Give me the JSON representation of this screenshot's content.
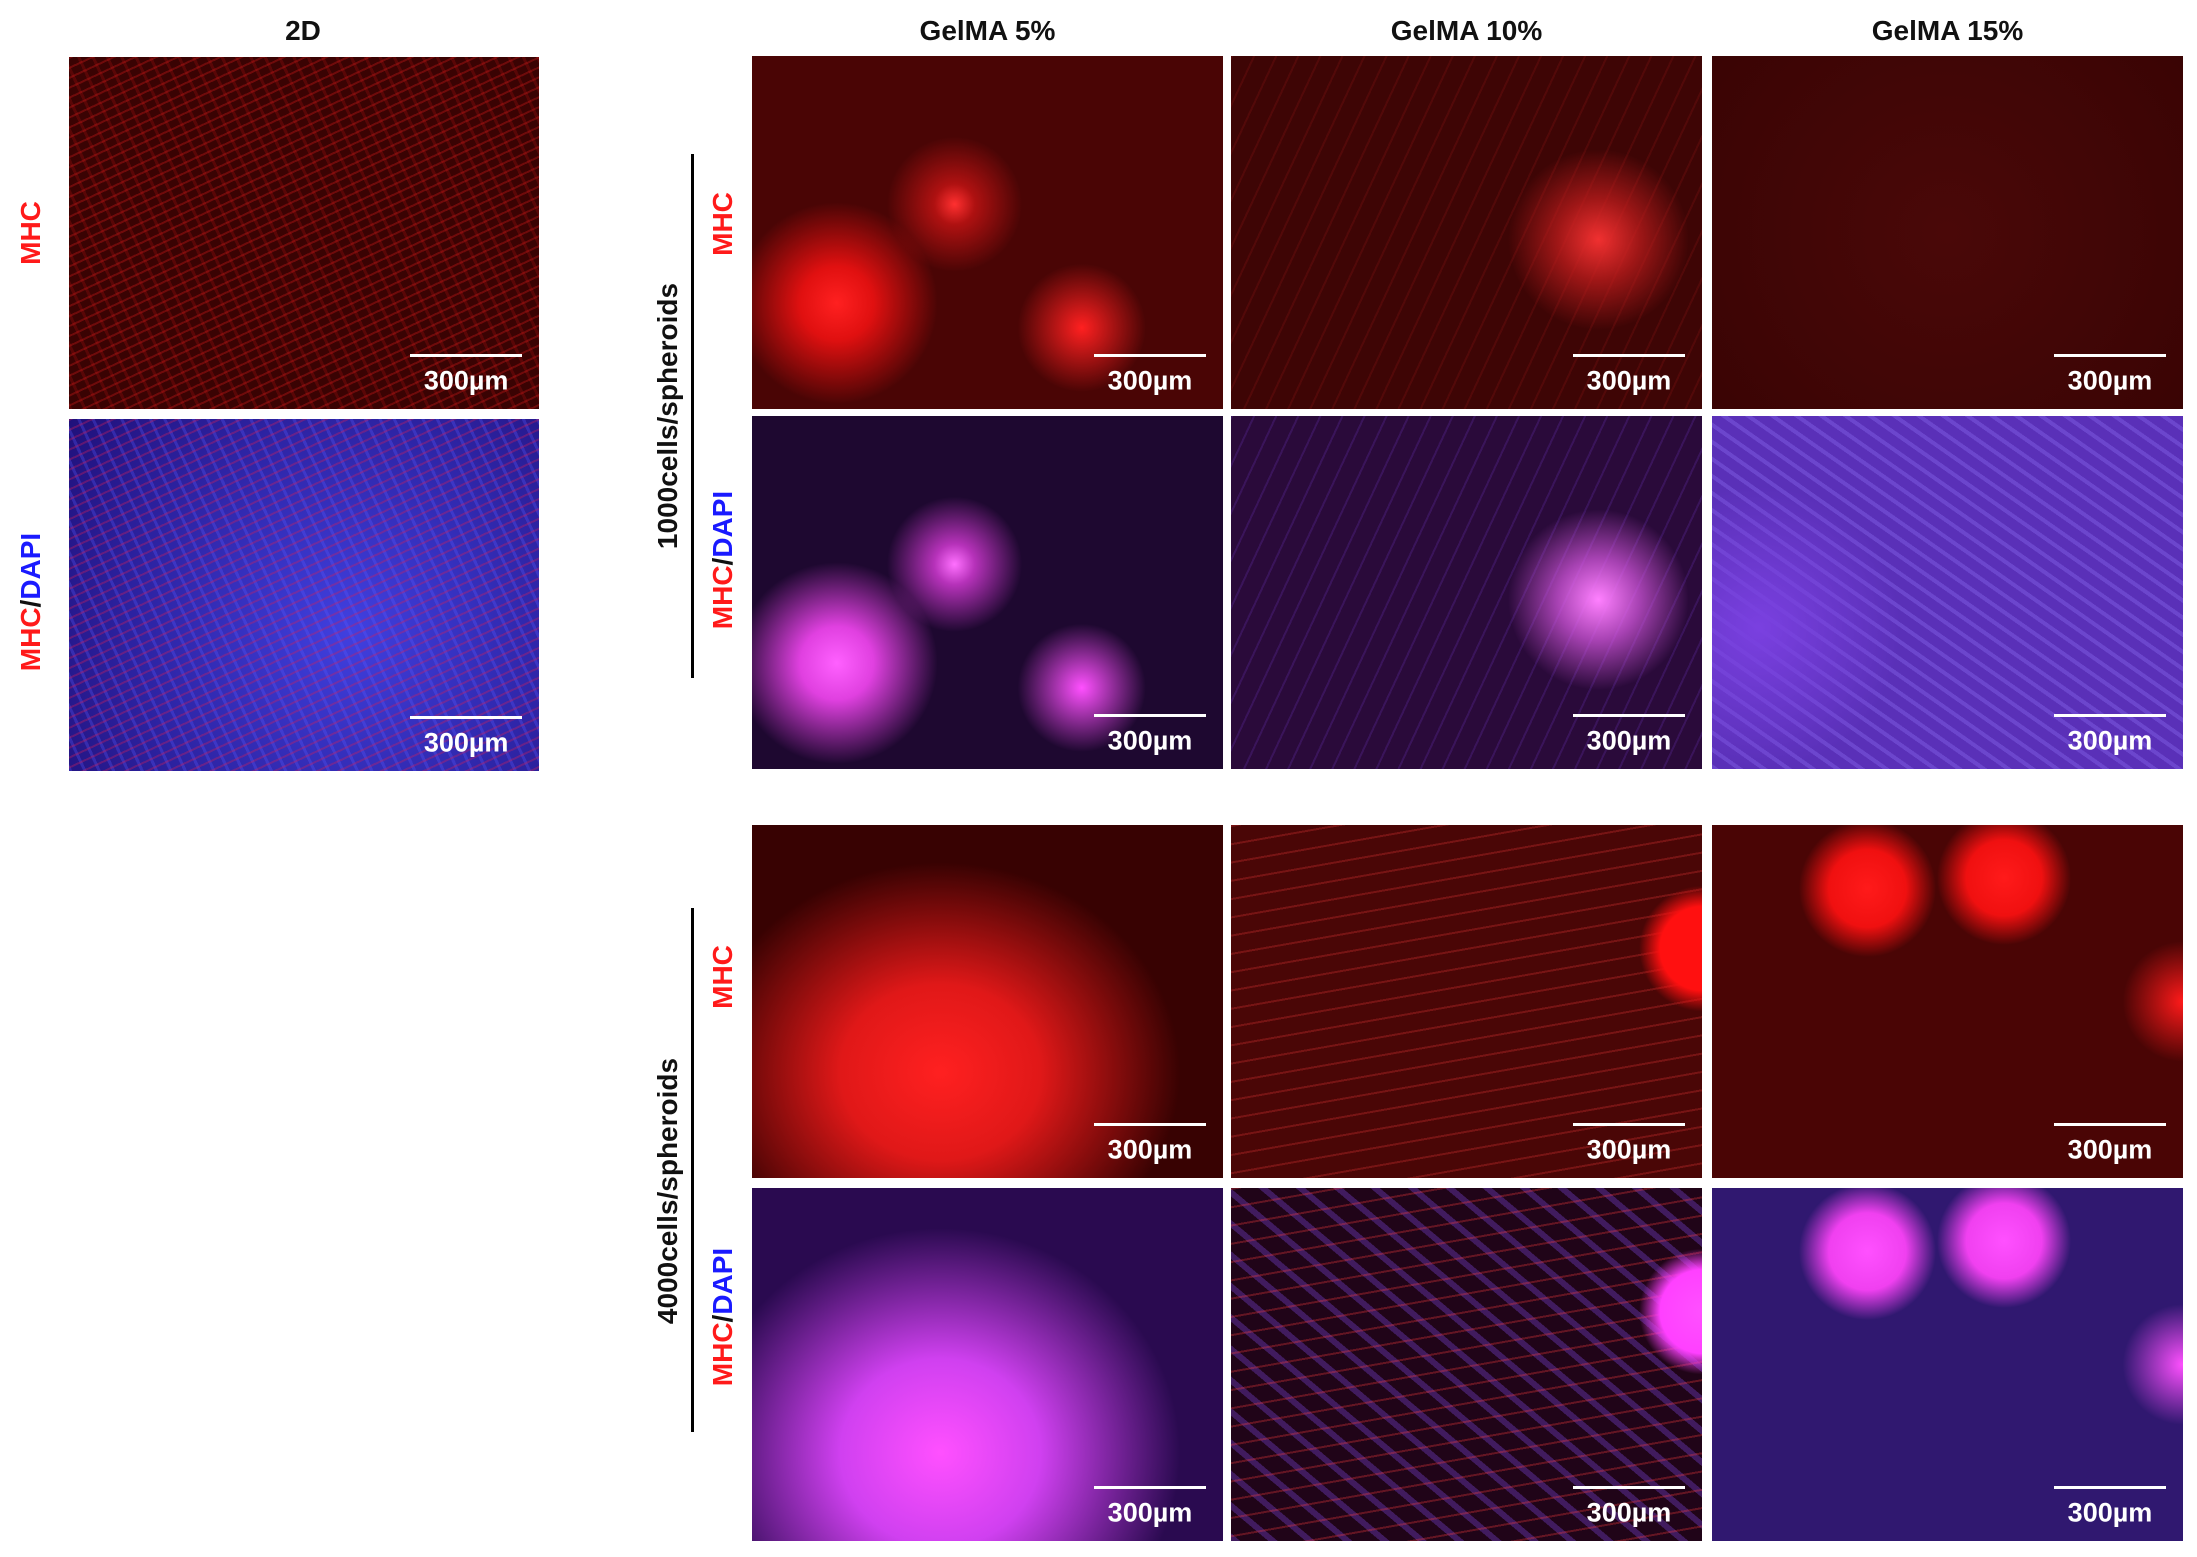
{
  "header": {
    "2d": "2D",
    "gelma": [
      "GelMA 5%",
      "GelMA 10%",
      "GelMA 15%"
    ]
  },
  "stain": {
    "mhc": "MHC",
    "slash": "/",
    "dapi": "DAPI"
  },
  "panel_2d": [
    "300µm",
    "300µm"
  ],
  "groups": [
    {
      "label": "1000cells/spheroids",
      "mhc": [
        "300µm",
        "300µm",
        "300µm"
      ],
      "merge": [
        "300µm",
        "300µm",
        "300µm"
      ]
    },
    {
      "label": "4000cells/spheroids",
      "mhc": [
        "300µm",
        "300µm",
        "300µm"
      ],
      "merge": [
        "300µm",
        "300µm",
        "300µm"
      ]
    }
  ]
}
